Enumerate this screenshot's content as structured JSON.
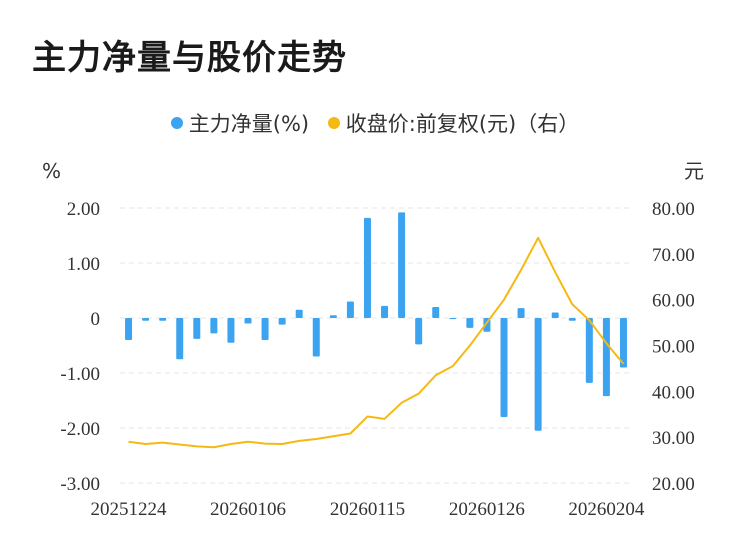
{
  "title": "主力净量与股价走势",
  "chart_data": {
    "type": "bar+line",
    "series": [
      {
        "name": "主力净量(%)",
        "color": "#3ba3ef",
        "axis": "left",
        "type": "bar",
        "values": [
          -0.4,
          -0.05,
          -0.05,
          -0.75,
          -0.38,
          -0.28,
          -0.45,
          -0.1,
          -0.4,
          -0.12,
          0.15,
          -0.7,
          0.05,
          0.3,
          1.82,
          0.22,
          1.92,
          -0.48,
          0.2,
          -0.02,
          -0.18,
          -0.25,
          -1.8,
          0.18,
          -2.05,
          0.1,
          -0.05,
          -1.18,
          -1.42,
          -0.9
        ]
      },
      {
        "name": "收盘价:前复权(元)（右）",
        "color": "#f5b914",
        "axis": "right",
        "type": "line",
        "values": [
          29.0,
          28.5,
          28.8,
          28.4,
          28.0,
          27.8,
          28.5,
          29.0,
          28.6,
          28.5,
          29.2,
          29.6,
          30.2,
          30.8,
          34.5,
          34.0,
          37.5,
          39.5,
          43.5,
          45.5,
          50.0,
          55.0,
          60.0,
          66.5,
          73.5,
          66.0,
          59.0,
          55.5,
          50.5,
          46.0
        ]
      }
    ],
    "x_tick_labels": [
      "20251224",
      "20260106",
      "20260115",
      "20260126",
      "20260204"
    ],
    "x_tick_indices": [
      0,
      7,
      14,
      21,
      28
    ],
    "left_axis": {
      "unit": "%",
      "ylim": [
        -3,
        2
      ],
      "ticks": [
        "2.00",
        "1.00",
        "0",
        "-1.00",
        "-2.00",
        "-3.00"
      ],
      "tick_values": [
        2,
        1,
        0,
        -1,
        -2,
        -3
      ]
    },
    "right_axis": {
      "unit": "元",
      "ylim": [
        20,
        80
      ],
      "ticks": [
        "80.00",
        "70.00",
        "60.00",
        "50.00",
        "40.00",
        "30.00",
        "20.00"
      ],
      "tick_values": [
        80,
        70,
        60,
        50,
        40,
        30,
        20
      ]
    },
    "grid": true,
    "legend_position": "top-center"
  }
}
